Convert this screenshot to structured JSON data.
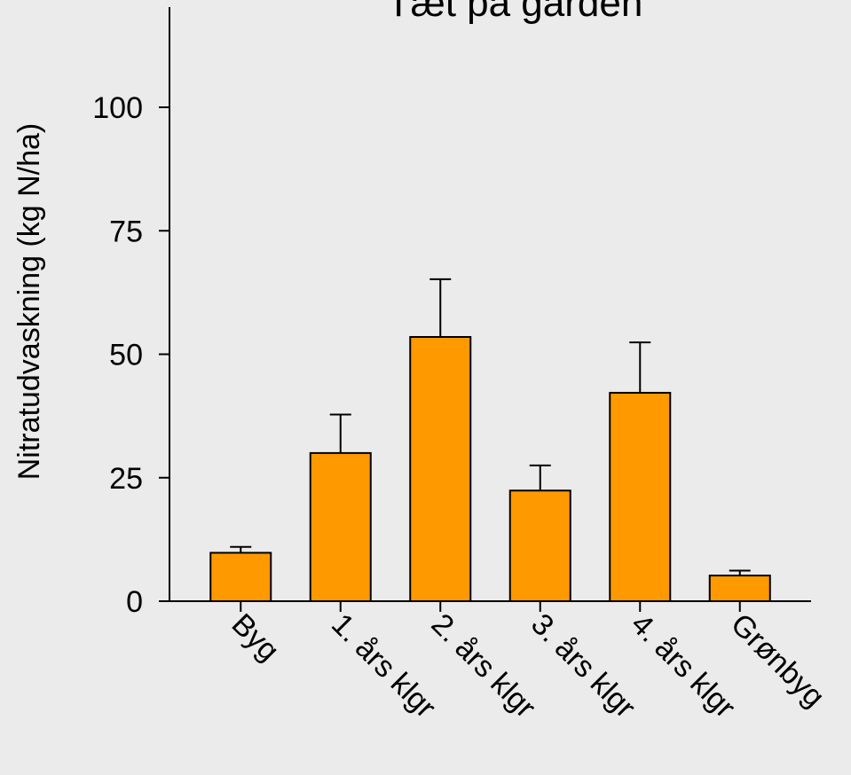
{
  "chart_data": {
    "type": "bar",
    "title": "Tæt på gården",
    "xlabel": "",
    "ylabel": "Nitratudvaskning (kg N/ha)",
    "categories": [
      "Byg",
      "1. års klgr",
      "2. års klgr",
      "3. års klgr",
      "4. års klgr",
      "Grønbyg"
    ],
    "values": [
      9.8,
      30.0,
      53.5,
      22.4,
      42.2,
      5.2
    ],
    "errors": [
      1.2,
      7.8,
      11.7,
      5.1,
      10.2,
      1.0
    ],
    "yticks": [
      0,
      25,
      50,
      75,
      100
    ],
    "ylim": [
      0,
      120
    ],
    "grid": false,
    "legend": "none",
    "colors": {
      "bar": "#ff9900",
      "background": "#ebebeb",
      "axis": "#000000"
    }
  }
}
